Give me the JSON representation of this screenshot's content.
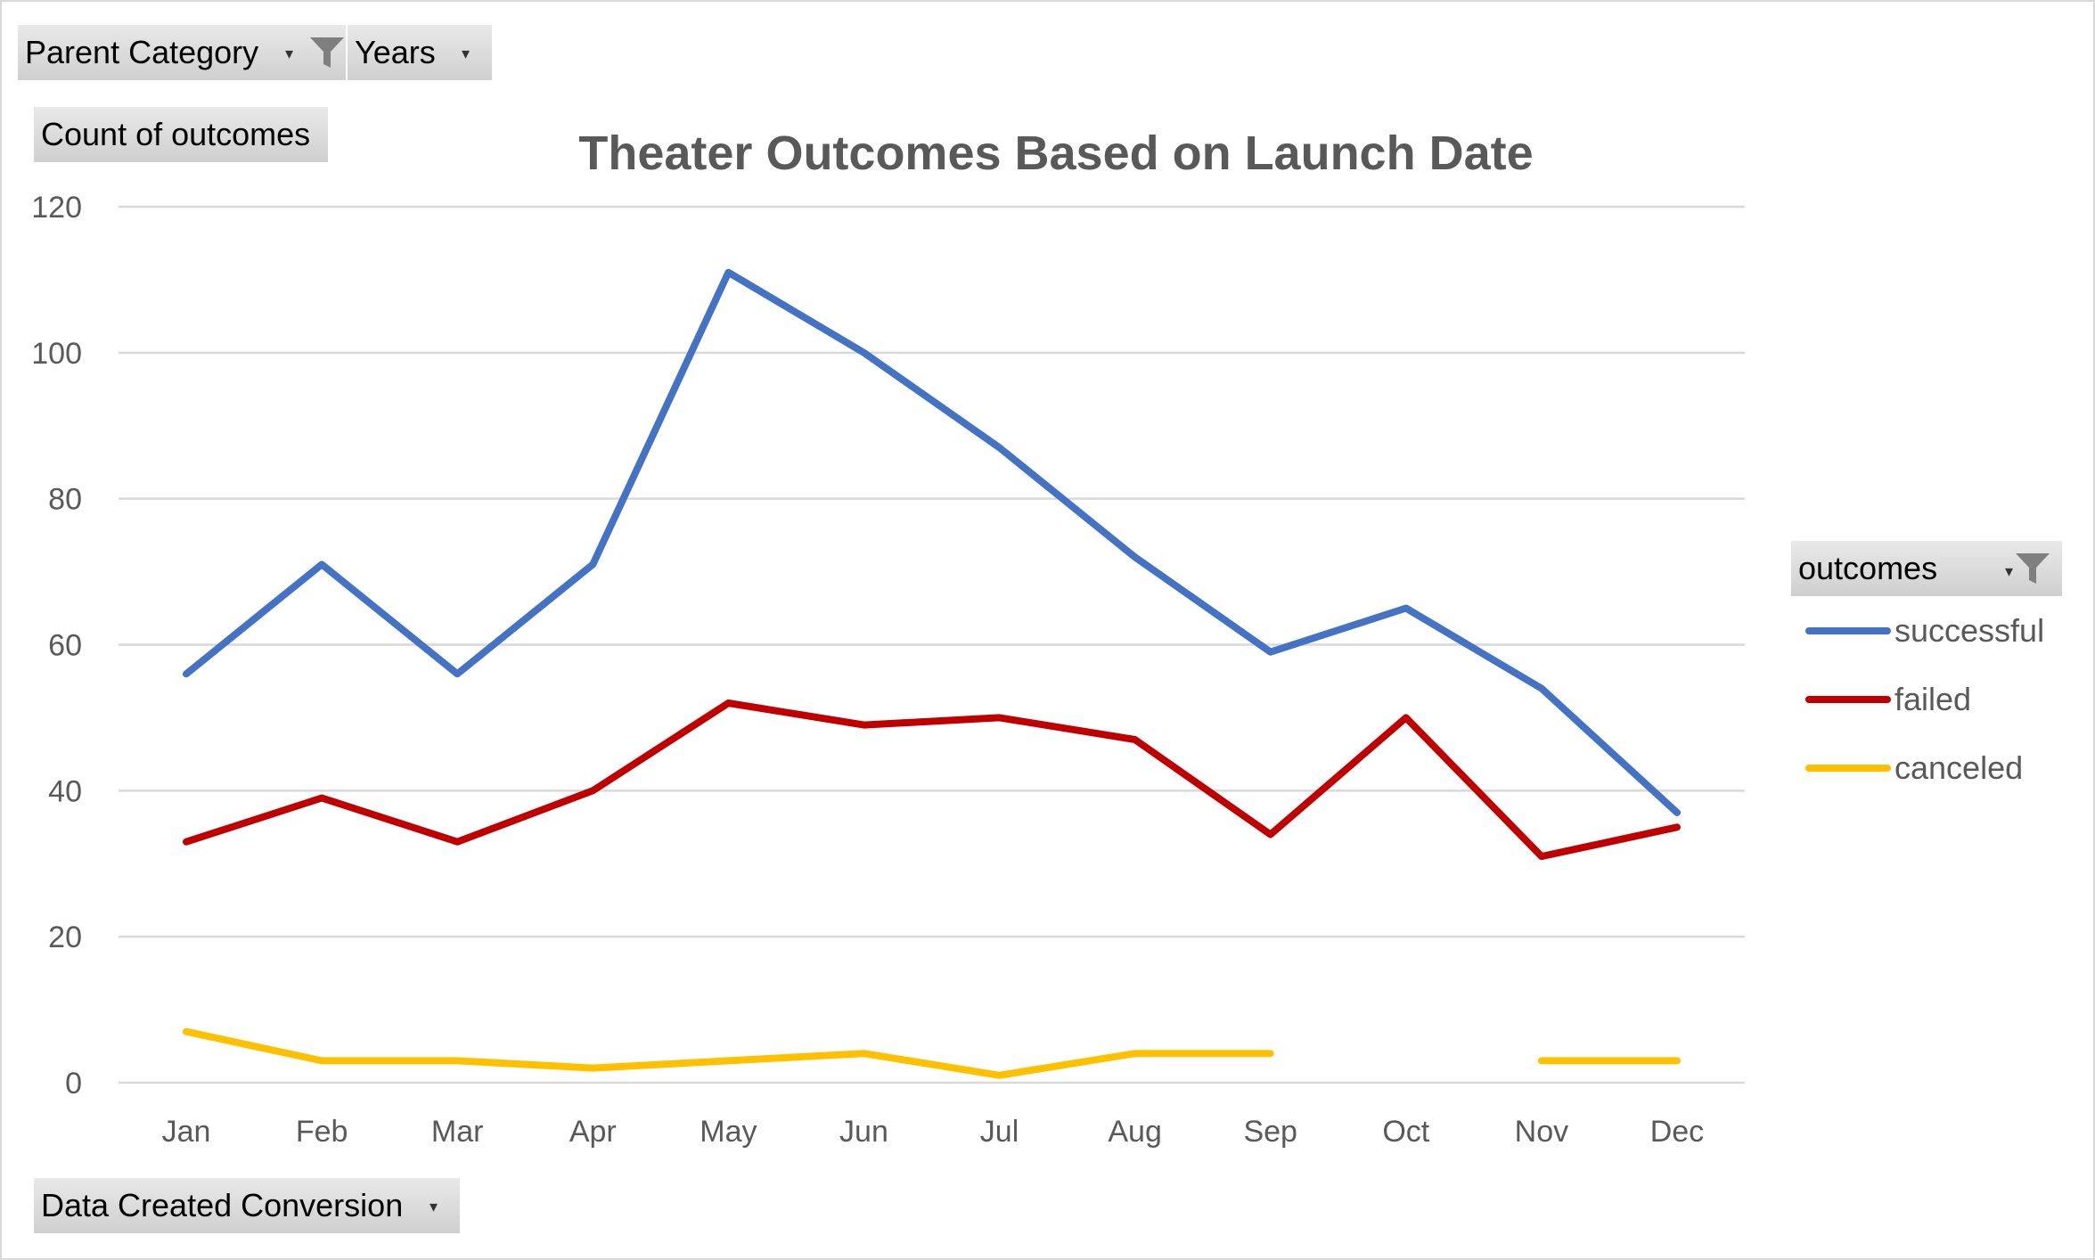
{
  "filters": {
    "parent_category": "Parent Category",
    "years": "Years",
    "count_of_outcomes": "Count of outcomes",
    "data_created_conversion": "Data Created Conversion",
    "legend_field": "outcomes"
  },
  "chart_data": {
    "type": "line",
    "title": "Theater Outcomes Based on Launch Date",
    "xlabel": "",
    "ylabel": "",
    "categories": [
      "Jan",
      "Feb",
      "Mar",
      "Apr",
      "May",
      "Jun",
      "Jul",
      "Aug",
      "Sep",
      "Oct",
      "Nov",
      "Dec"
    ],
    "ylim": [
      0,
      120
    ],
    "yticks": [
      0,
      20,
      40,
      60,
      80,
      100,
      120
    ],
    "grid": true,
    "legend_position": "right",
    "series": [
      {
        "name": "successful",
        "color": "#4472C4",
        "values": [
          56,
          71,
          56,
          71,
          111,
          100,
          87,
          72,
          59,
          65,
          54,
          37
        ]
      },
      {
        "name": "failed",
        "color": "#C00000",
        "values": [
          33,
          39,
          33,
          40,
          52,
          49,
          50,
          47,
          34,
          50,
          31,
          35
        ]
      },
      {
        "name": "canceled",
        "color": "#FFC000",
        "values": [
          7,
          3,
          3,
          2,
          3,
          4,
          1,
          4,
          4,
          null,
          3,
          3
        ]
      }
    ]
  }
}
